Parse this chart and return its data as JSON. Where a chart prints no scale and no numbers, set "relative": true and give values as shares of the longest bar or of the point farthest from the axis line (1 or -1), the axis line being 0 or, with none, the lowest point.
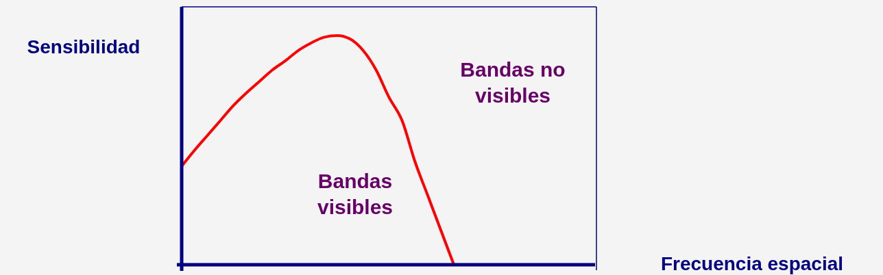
{
  "chart_data": {
    "type": "line",
    "relative": true,
    "xlabel": "Frecuencia espacial",
    "ylabel": "Sensibilidad",
    "annotations": [
      "Bandas no visibles",
      "Bandas visibles"
    ],
    "categories": [
      null,
      null,
      null,
      null,
      null,
      null,
      null,
      null,
      null,
      null,
      null,
      null,
      null,
      null,
      null,
      null,
      null,
      null,
      null,
      null,
      null,
      null,
      null,
      null,
      null,
      null,
      null,
      null,
      null,
      null,
      null,
      null,
      null
    ],
    "series": [
      {
        "color": "#ff0000",
        "values": [
          0.43,
          0.5,
          0.565,
          0.63,
          0.695,
          0.75,
          0.8,
          0.85,
          0.89,
          0.935,
          0.968,
          0.993,
          1.0,
          0.985,
          0.935,
          0.85,
          0.73,
          0.63,
          0.45,
          0.3,
          0.15,
          0,
          null,
          null,
          null,
          null,
          null,
          null,
          null,
          null,
          null,
          null,
          null
        ]
      }
    ],
    "marker": "none",
    "line_style": "solid"
  }
}
